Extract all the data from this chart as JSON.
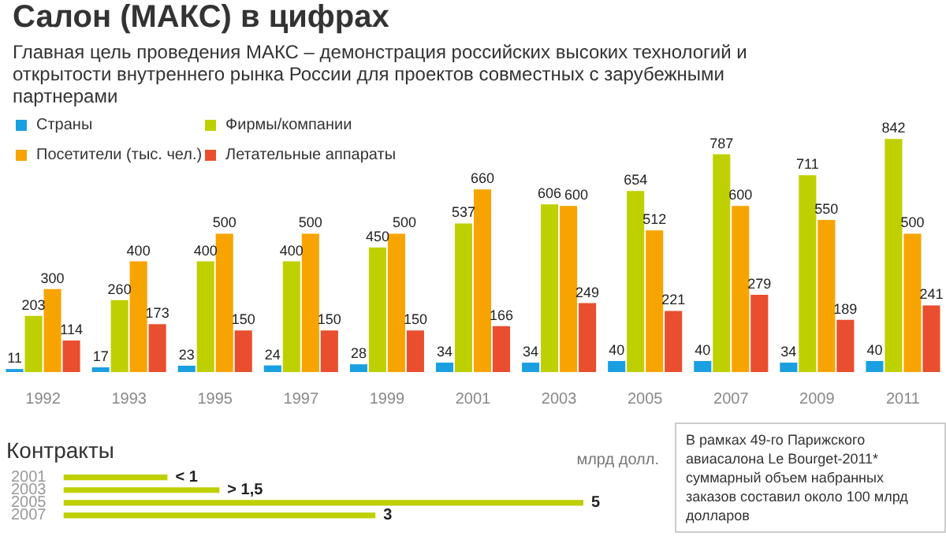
{
  "chart_data": [
    {
      "type": "bar",
      "title": "Салон (МАКС) в цифрах",
      "subtitle": "Главная цель проведения МАКС – демонстрация российских высоких технологий и открытости внутреннего рынка России для проектов совместных с зарубежными партнерами",
      "categories": [
        "1992",
        "1993",
        "1995",
        "1997",
        "1999",
        "2001",
        "2003",
        "2005",
        "2007",
        "2009",
        "2011"
      ],
      "series": [
        {
          "name": "Страны",
          "color": "#1a9fe0",
          "values": [
            11,
            17,
            23,
            24,
            28,
            34,
            34,
            40,
            40,
            34,
            40
          ]
        },
        {
          "name": "Фирмы/компании",
          "color": "#bfd000",
          "values": [
            203,
            260,
            400,
            400,
            450,
            537,
            606,
            654,
            787,
            711,
            842
          ]
        },
        {
          "name": "Посетители (тыс. чел.)",
          "color": "#f7a400",
          "values": [
            300,
            400,
            500,
            500,
            500,
            660,
            600,
            512,
            600,
            550,
            500
          ]
        },
        {
          "name": "Летательные аппараты",
          "color": "#e94e2e",
          "values": [
            114,
            173,
            150,
            150,
            150,
            166,
            249,
            221,
            279,
            189,
            241
          ]
        }
      ],
      "data_labels": true,
      "legend": "top left",
      "grid": false
    },
    {
      "type": "bar",
      "orientation": "horizontal",
      "title": "Контракты",
      "xlabel": "млрд долл.",
      "categories": [
        "2001",
        "2003",
        "2005",
        "2007"
      ],
      "values": [
        1,
        1.5,
        5,
        3
      ],
      "color": "#bfd000",
      "value_labels": [
        "< 1",
        "> 1,5",
        "5",
        "3"
      ],
      "grid": false,
      "annotations": [
        "В рамках 49-го Парижского авиасалона Le Bourget-2011* суммарный объем набранных заказов составил около 100 млрд долларов"
      ]
    }
  ]
}
